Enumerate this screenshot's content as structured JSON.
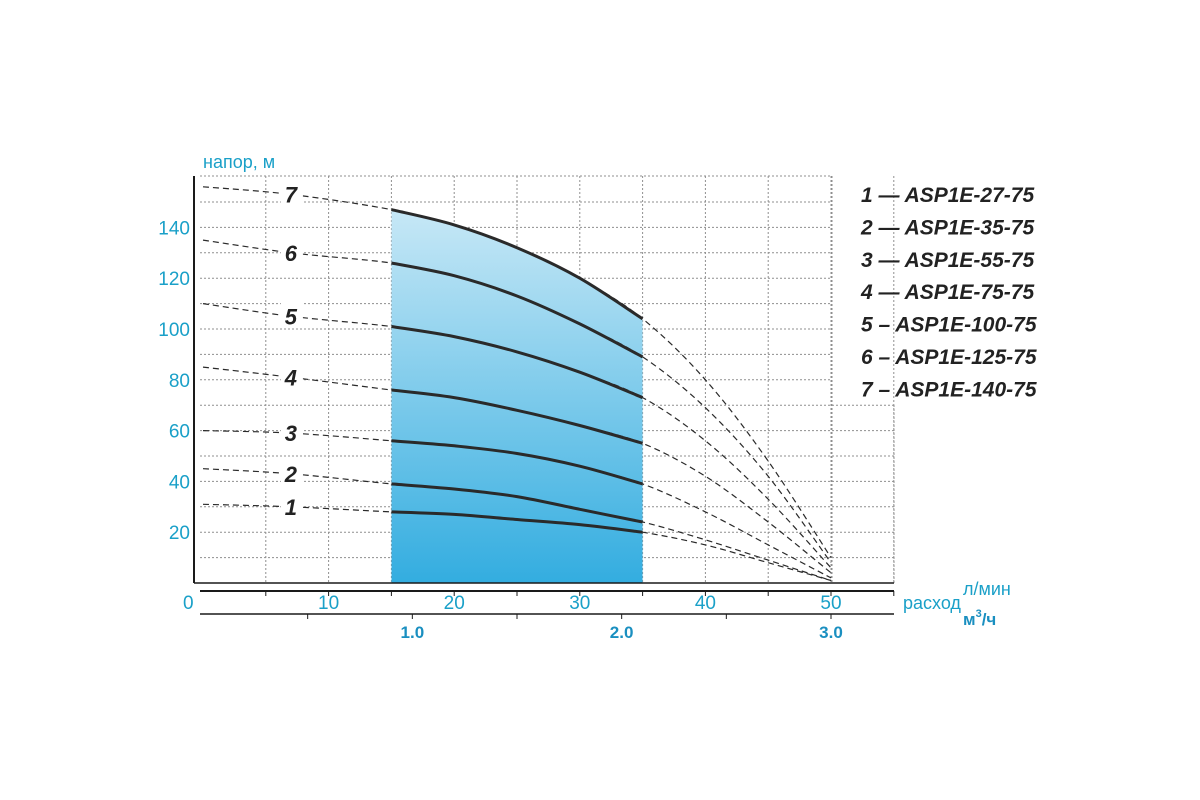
{
  "chart_data": {
    "type": "line",
    "ylabel": "напор, м",
    "xlabel_prefix": "расход",
    "x_unit_primary": "л/мин",
    "x_unit_secondary_base": "м",
    "x_unit_secondary_sup": "3",
    "x_unit_secondary_tail": "/ч",
    "ylim": [
      0,
      160
    ],
    "xlim": [
      0,
      57
    ],
    "origin_label": "0",
    "y_ticks": [
      {
        "v": 20,
        "label": "20"
      },
      {
        "v": 40,
        "label": "40"
      },
      {
        "v": 60,
        "label": "60"
      },
      {
        "v": 80,
        "label": "80"
      },
      {
        "v": 100,
        "label": "100"
      },
      {
        "v": 120,
        "label": "120"
      },
      {
        "v": 140,
        "label": "140"
      }
    ],
    "x_ticks": [
      {
        "v": 10,
        "label": "10"
      },
      {
        "v": 20,
        "label": "20"
      },
      {
        "v": 30,
        "label": "30"
      },
      {
        "v": 40,
        "label": "40"
      },
      {
        "v": 50,
        "label": "50"
      }
    ],
    "x_ticks_secondary": [
      {
        "v": 16.67,
        "label": "1.0"
      },
      {
        "v": 33.33,
        "label": "2.0"
      },
      {
        "v": 50,
        "label": "3.0"
      }
    ],
    "working_range": [
      15,
      35
    ],
    "legend": [
      "1 — ASP1E-27-75",
      "2 — ASP1E-35-75",
      "3 — ASP1E-55-75",
      "4 — ASP1E-75-75",
      "5 – ASP1E-100-75",
      "6 – ASP1E-125-75",
      "7 – ASP1E-140-75"
    ],
    "series": [
      {
        "name": "1",
        "x": [
          0,
          7,
          15,
          20,
          25,
          30,
          35,
          40,
          45,
          50
        ],
        "y": [
          31,
          30,
          28,
          27,
          25,
          23,
          20,
          15,
          8,
          1
        ]
      },
      {
        "name": "2",
        "x": [
          0,
          7,
          15,
          20,
          25,
          30,
          35,
          40,
          45,
          50
        ],
        "y": [
          45,
          43,
          39,
          37,
          34,
          29,
          24,
          17,
          9,
          1
        ]
      },
      {
        "name": "3",
        "x": [
          0,
          7,
          15,
          20,
          25,
          30,
          35,
          40,
          45,
          50
        ],
        "y": [
          60,
          59,
          56,
          54,
          51,
          46,
          39,
          28,
          15,
          2
        ]
      },
      {
        "name": "4",
        "x": [
          0,
          7,
          15,
          20,
          25,
          30,
          35,
          40,
          45,
          50
        ],
        "y": [
          85,
          81,
          76,
          73,
          68,
          62,
          55,
          42,
          24,
          4
        ]
      },
      {
        "name": "5",
        "x": [
          0,
          7,
          15,
          20,
          25,
          30,
          35,
          40,
          45,
          50
        ],
        "y": [
          110,
          105,
          101,
          97,
          91,
          83,
          73,
          56,
          33,
          6
        ]
      },
      {
        "name": "6",
        "x": [
          0,
          7,
          15,
          20,
          25,
          30,
          35,
          40,
          45,
          50
        ],
        "y": [
          135,
          130,
          126,
          121,
          113,
          102,
          89,
          69,
          42,
          8
        ]
      },
      {
        "name": "7",
        "x": [
          0,
          7,
          15,
          20,
          25,
          30,
          35,
          40,
          45,
          50
        ],
        "y": [
          156,
          153,
          147,
          141,
          132,
          120,
          104,
          80,
          48,
          10
        ]
      }
    ]
  },
  "colors": {
    "axis_text": "#1aa0c8",
    "grid": "#8f8f8f",
    "curve": "#2a2a2a",
    "fill_top": "#d4edf8",
    "fill_bottom": "#33ade0"
  }
}
